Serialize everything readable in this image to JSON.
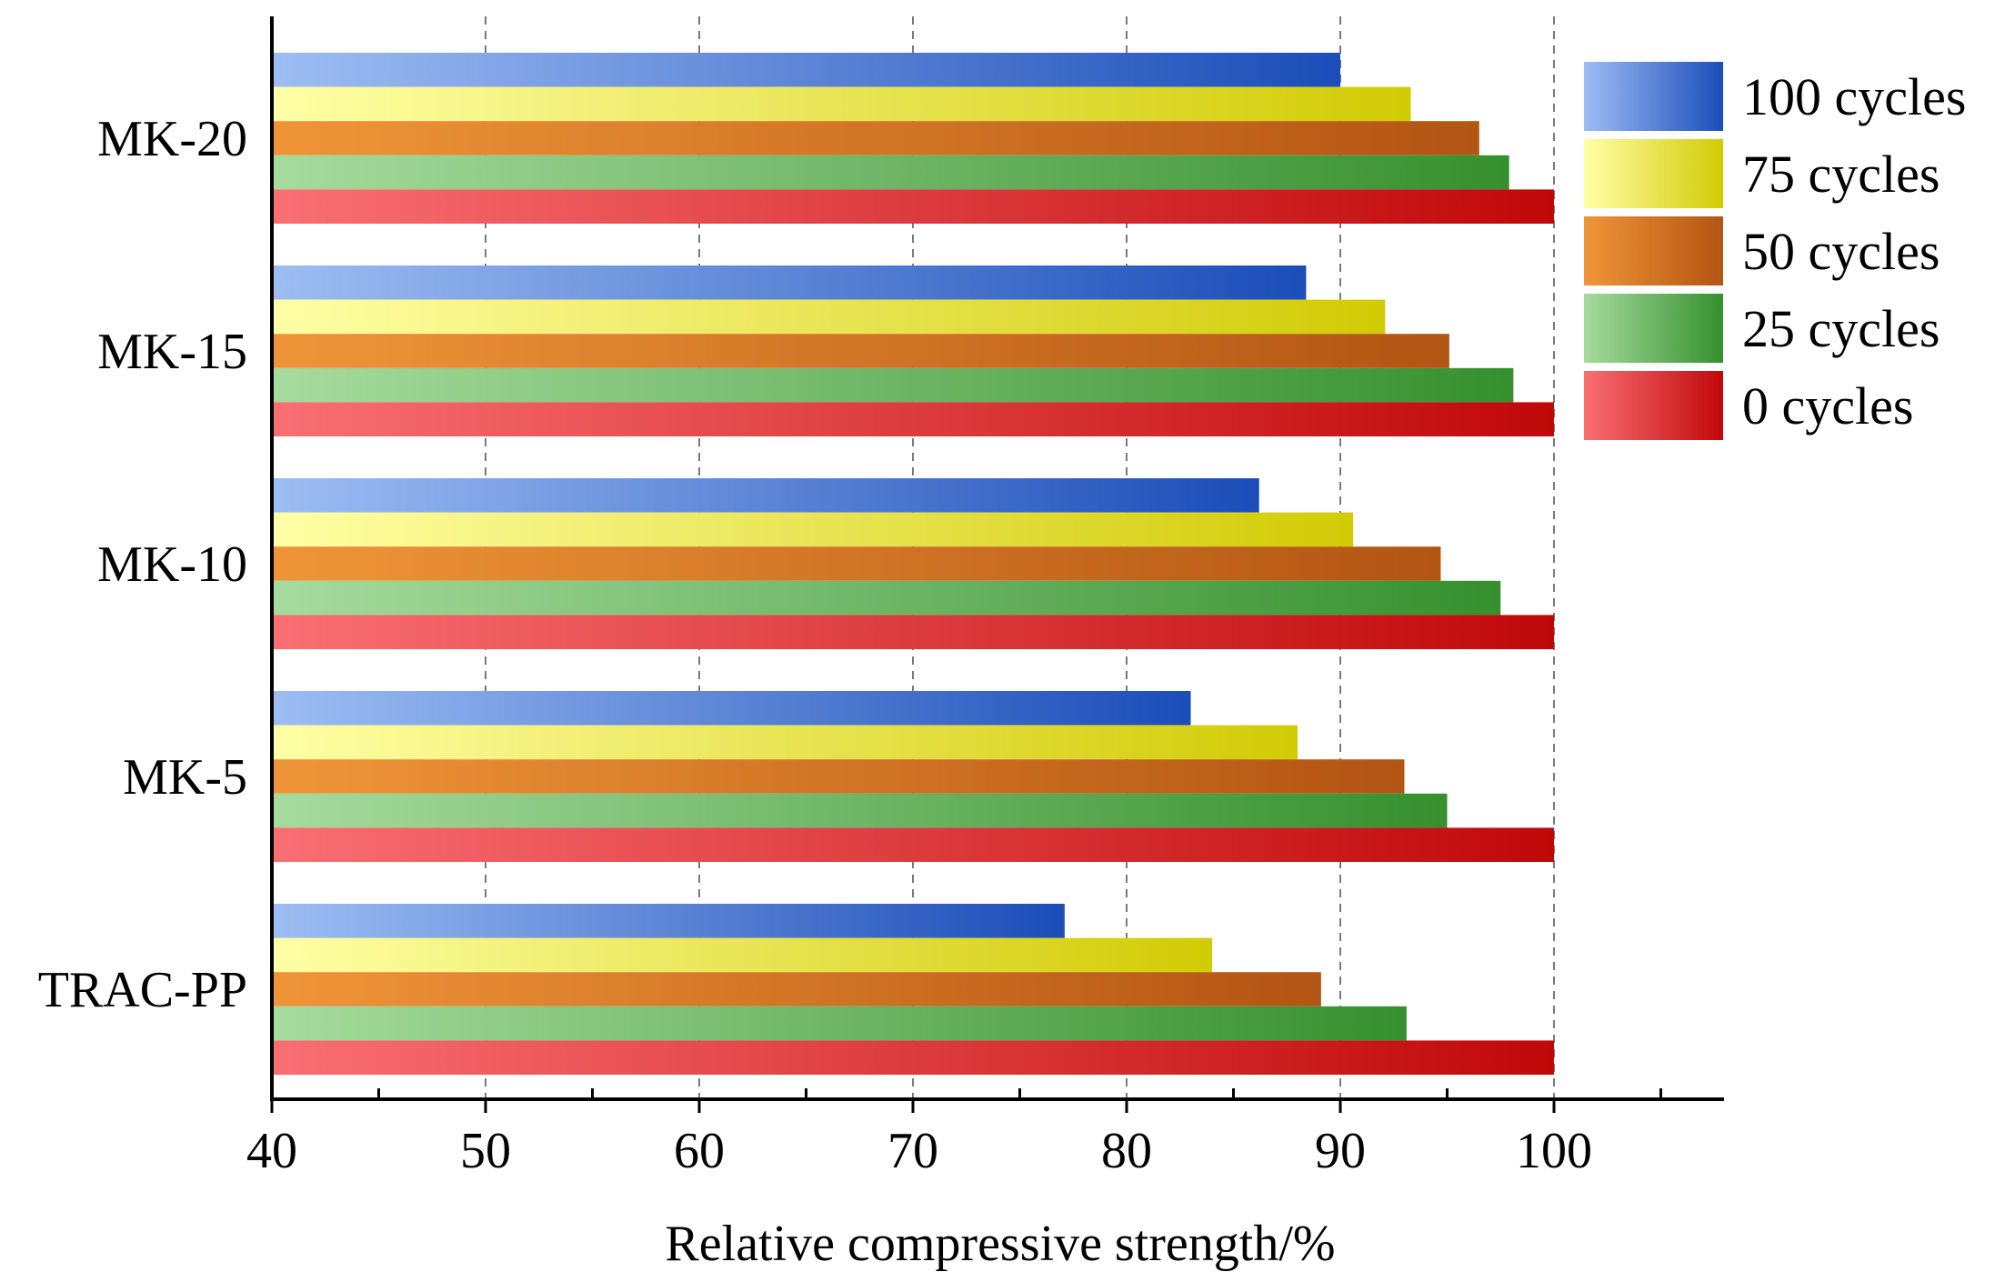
{
  "chart_data": {
    "type": "bar",
    "orientation": "horizontal",
    "title": "",
    "xlabel": "Relative compressive strength/%",
    "ylabel": "",
    "xlim": [
      40,
      108
    ],
    "x_ticks": [
      40,
      50,
      60,
      70,
      80,
      90,
      100
    ],
    "x_minor_ticks": [
      45,
      55,
      65,
      75,
      85,
      95,
      105
    ],
    "grid": "vertical dashed at major ticks",
    "legend_position": "top-right",
    "categories": [
      "MK-20",
      "MK-15",
      "MK-10",
      "MK-5",
      "TRAC-PP"
    ],
    "series": [
      {
        "name": "100 cycles",
        "values": [
          90.0,
          88.4,
          86.2,
          83.0,
          77.1
        ],
        "colors": [
          "#9DBDF3",
          "#1B4DB9"
        ]
      },
      {
        "name": "75 cycles",
        "values": [
          93.3,
          92.1,
          90.6,
          88.0,
          84.0
        ],
        "colors": [
          "#FFFFA6",
          "#D2CB05"
        ]
      },
      {
        "name": "50 cycles",
        "values": [
          96.5,
          95.1,
          94.7,
          93.0,
          89.1
        ],
        "colors": [
          "#EF9538",
          "#B35513"
        ]
      },
      {
        "name": "25 cycles",
        "values": [
          97.9,
          98.1,
          97.5,
          95.0,
          93.1
        ],
        "colors": [
          "#A6DB9E",
          "#36902E"
        ]
      },
      {
        "name": "0 cycles",
        "values": [
          100,
          100,
          100,
          100,
          100
        ],
        "colors": [
          "#F96F73",
          "#C00809"
        ]
      }
    ]
  }
}
